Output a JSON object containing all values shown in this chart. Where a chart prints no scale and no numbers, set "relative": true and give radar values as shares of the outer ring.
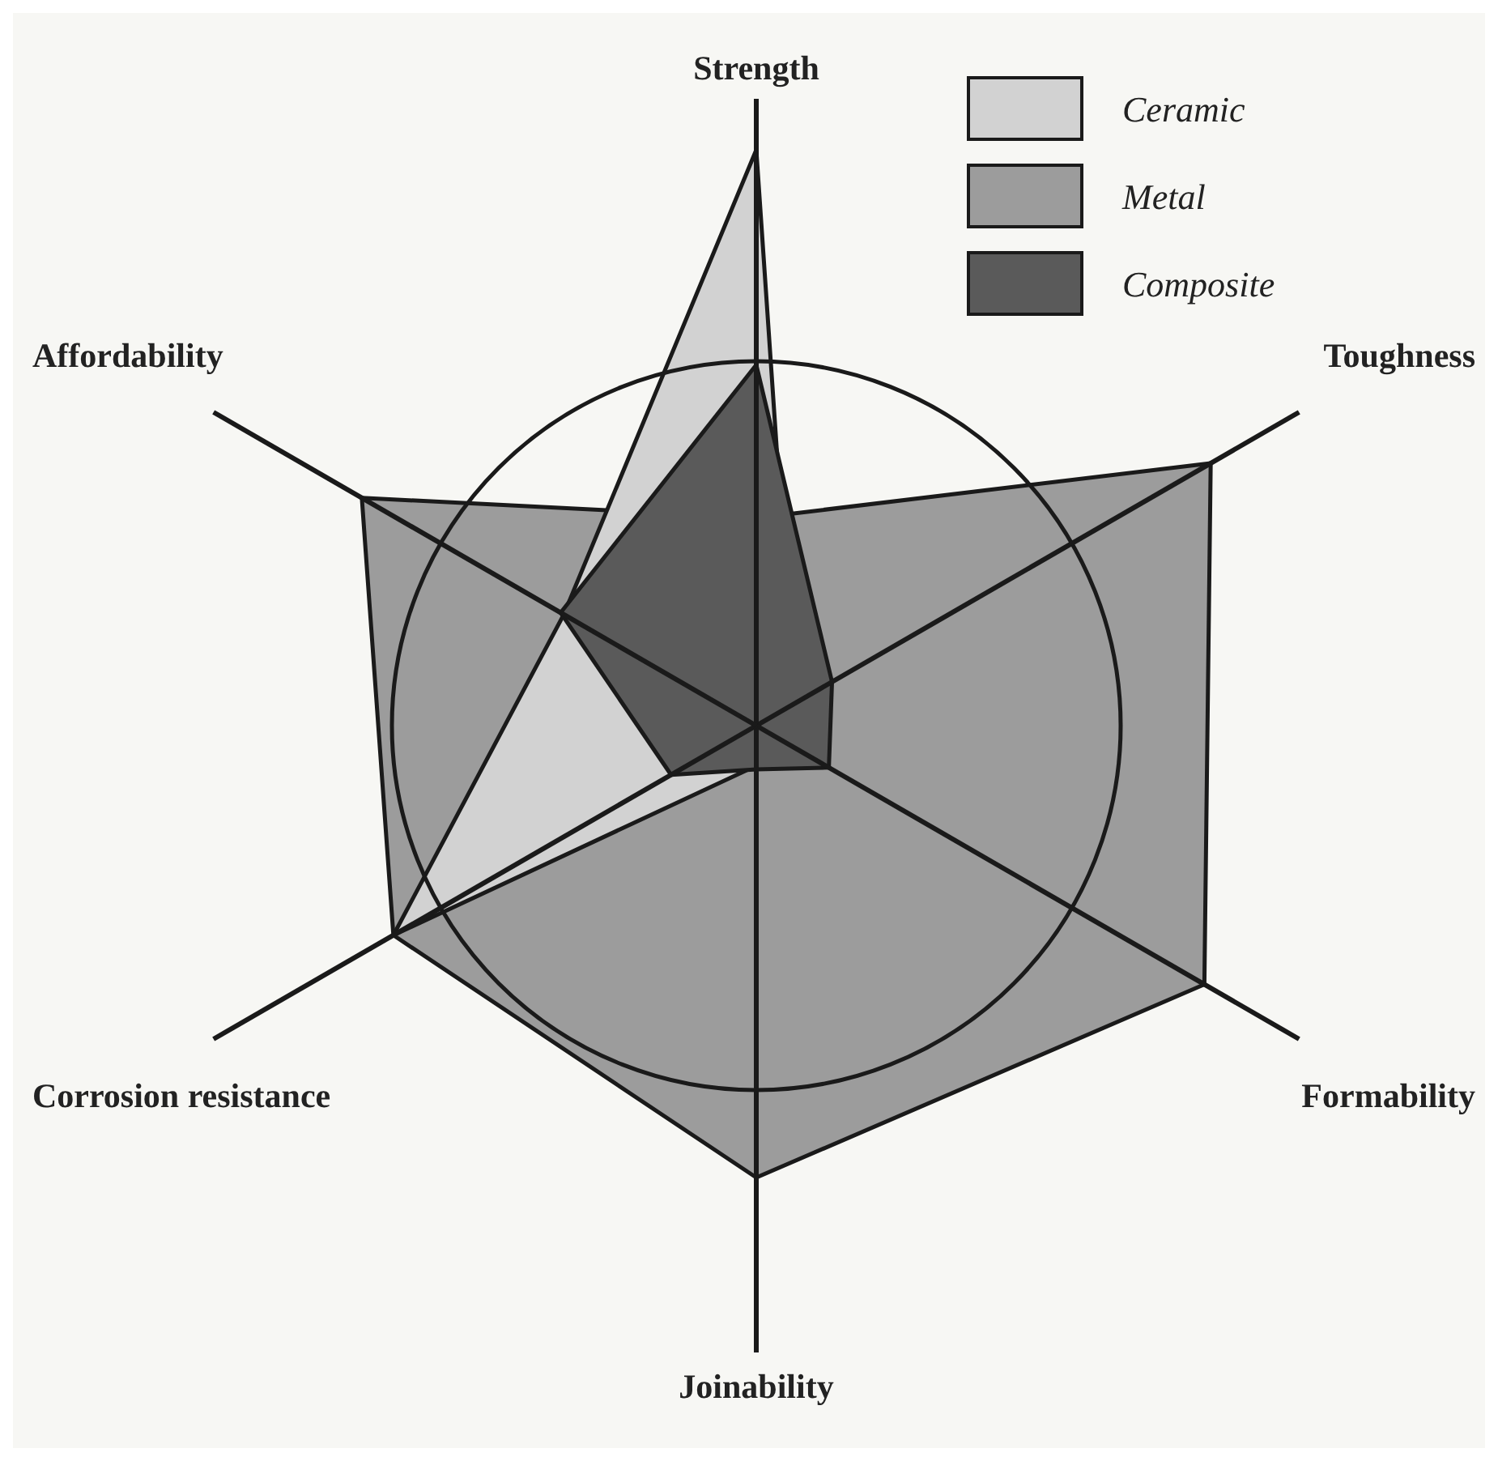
{
  "chart_data": {
    "type": "radar",
    "relative": true,
    "categories": [
      "Strength",
      "Toughness",
      "Formability",
      "Joinability",
      "Corrosion resistance",
      "Affordability"
    ],
    "series": [
      {
        "name": "Ceramic",
        "color": "#d2d2d2",
        "values": [
          1.58,
          0.12,
          0.16,
          0.11,
          1.15,
          0.61
        ]
      },
      {
        "name": "Metal",
        "color": "#9c9c9c",
        "values": [
          0.57,
          1.44,
          1.42,
          1.24,
          1.15,
          1.25
        ]
      },
      {
        "name": "Composite",
        "color": "#5a5a5a",
        "values": [
          0.99,
          0.24,
          0.23,
          0.12,
          0.27,
          0.62
        ]
      }
    ],
    "legend": "top right"
  }
}
